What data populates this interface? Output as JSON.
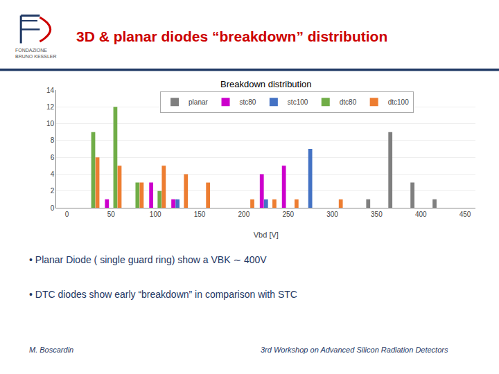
{
  "chart_data": {
    "type": "bar",
    "title": "Breakdown distribution",
    "xlabel": "Vbd [V]",
    "xlim": [
      -12,
      462
    ],
    "xticks": [
      0,
      50,
      100,
      150,
      200,
      250,
      300,
      350,
      400,
      450
    ],
    "ylim": [
      0,
      14
    ],
    "yticks": [
      0,
      2,
      4,
      6,
      8,
      10,
      12,
      14
    ],
    "grid": true,
    "legend": "top",
    "series": [
      {
        "name": "planar",
        "color": "#7f7f7f",
        "x": [
          350,
          375,
          400,
          425
        ],
        "values": [
          1,
          9,
          3,
          1
        ]
      },
      {
        "name": "stc80",
        "color": "#cc00cc",
        "x": [
          50,
          100,
          125,
          225,
          250
        ],
        "values": [
          1,
          3,
          1,
          4,
          5
        ]
      },
      {
        "name": "stc100",
        "color": "#4472c4",
        "x": [
          125,
          225,
          275
        ],
        "values": [
          1,
          1,
          7
        ]
      },
      {
        "name": "dtc80",
        "color": "#70ad47",
        "x": [
          25,
          50,
          75,
          100
        ],
        "values": [
          9,
          12,
          3,
          2
        ]
      },
      {
        "name": "dtc100",
        "color": "#ed7d31",
        "x": [
          25,
          50,
          75,
          100,
          125,
          150,
          200,
          225,
          250,
          300
        ],
        "values": [
          6,
          5,
          3,
          5,
          4,
          3,
          1,
          1,
          1,
          1
        ]
      }
    ],
    "annotations": [
      "3D & planar diodes “breakdown” distribution",
      "FONDAZIONE\nBRUNO KESSLER",
      "• Planar Diode ( single guard ring) show a VBK ∼ 400V",
      "• DTC diodes show early “breakdown” in comparison with STC",
      "M. Boscardin",
      "3rd Workshop on Advanced Silicon Radiation Detectors"
    ]
  }
}
